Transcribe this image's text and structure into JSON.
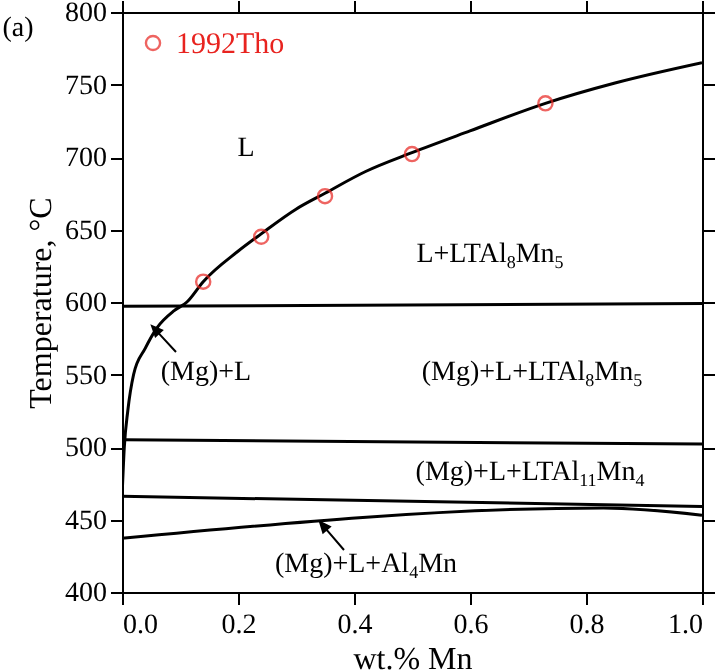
{
  "chart_data": {
    "type": "line",
    "xlabel": "wt.% Mn",
    "ylabel": "Temperature, °C",
    "xlim": [
      0,
      1
    ],
    "ylim": [
      400,
      800
    ],
    "xticks": [
      {
        "value": 0,
        "label": "0.0"
      },
      {
        "value": 0.2,
        "label": "0.2"
      },
      {
        "value": 0.4,
        "label": "0.4"
      },
      {
        "value": 0.6,
        "label": "0.6"
      },
      {
        "value": 0.8,
        "label": "0.8"
      },
      {
        "value": 1,
        "label": "1.0"
      }
    ],
    "yticks": [
      400,
      450,
      500,
      550,
      600,
      650,
      700,
      750,
      800
    ],
    "legend": "top left",
    "grid": false,
    "line_style": "solid",
    "series": [
      {
        "color": "#000000",
        "x": [
          0,
          0.004,
          0.01,
          0.02,
          0.04,
          0.06,
          0.09,
          0.112,
          0.14,
          0.2,
          0.24,
          0.3,
          0.35,
          0.42,
          0.5,
          0.6,
          0.73,
          0.85,
          1
        ],
        "values": [
          465,
          500,
          525,
          550,
          568,
          582,
          594,
          600,
          614,
          635,
          647,
          664,
          675,
          690,
          703,
          718,
          737,
          751,
          765
        ]
      },
      {
        "color": "#000000",
        "x": [
          0,
          1
        ],
        "values": [
          597,
          599
        ]
      },
      {
        "color": "#000000",
        "x": [
          0.005,
          1
        ],
        "values": [
          505,
          502
        ]
      },
      {
        "color": "#000000",
        "x": [
          0,
          1
        ],
        "values": [
          466,
          459
        ]
      },
      {
        "color": "#000000",
        "x": [
          0,
          0.83,
          1
        ],
        "values": [
          437,
          458,
          453
        ]
      },
      {
        "type": "scatter",
        "name": "1992Tho",
        "color": "#e8231f",
        "marker": "circle",
        "x": [
          0.14,
          0.24,
          0.35,
          0.5,
          0.73
        ],
        "values": [
          614,
          645,
          673,
          702,
          737
        ]
      }
    ],
    "annotations": [
      "(a)",
      "L",
      "L+LTAl$_{8}$Mn$_{5}$",
      "(Mg)+L",
      "(Mg)+L+LTAl$_{8}$Mn$_{5}$",
      "(Mg)+L+LTAl$_{11}$Mn$_{4}$",
      "(Mg)+L+Al$_{4}$Mn"
    ]
  }
}
